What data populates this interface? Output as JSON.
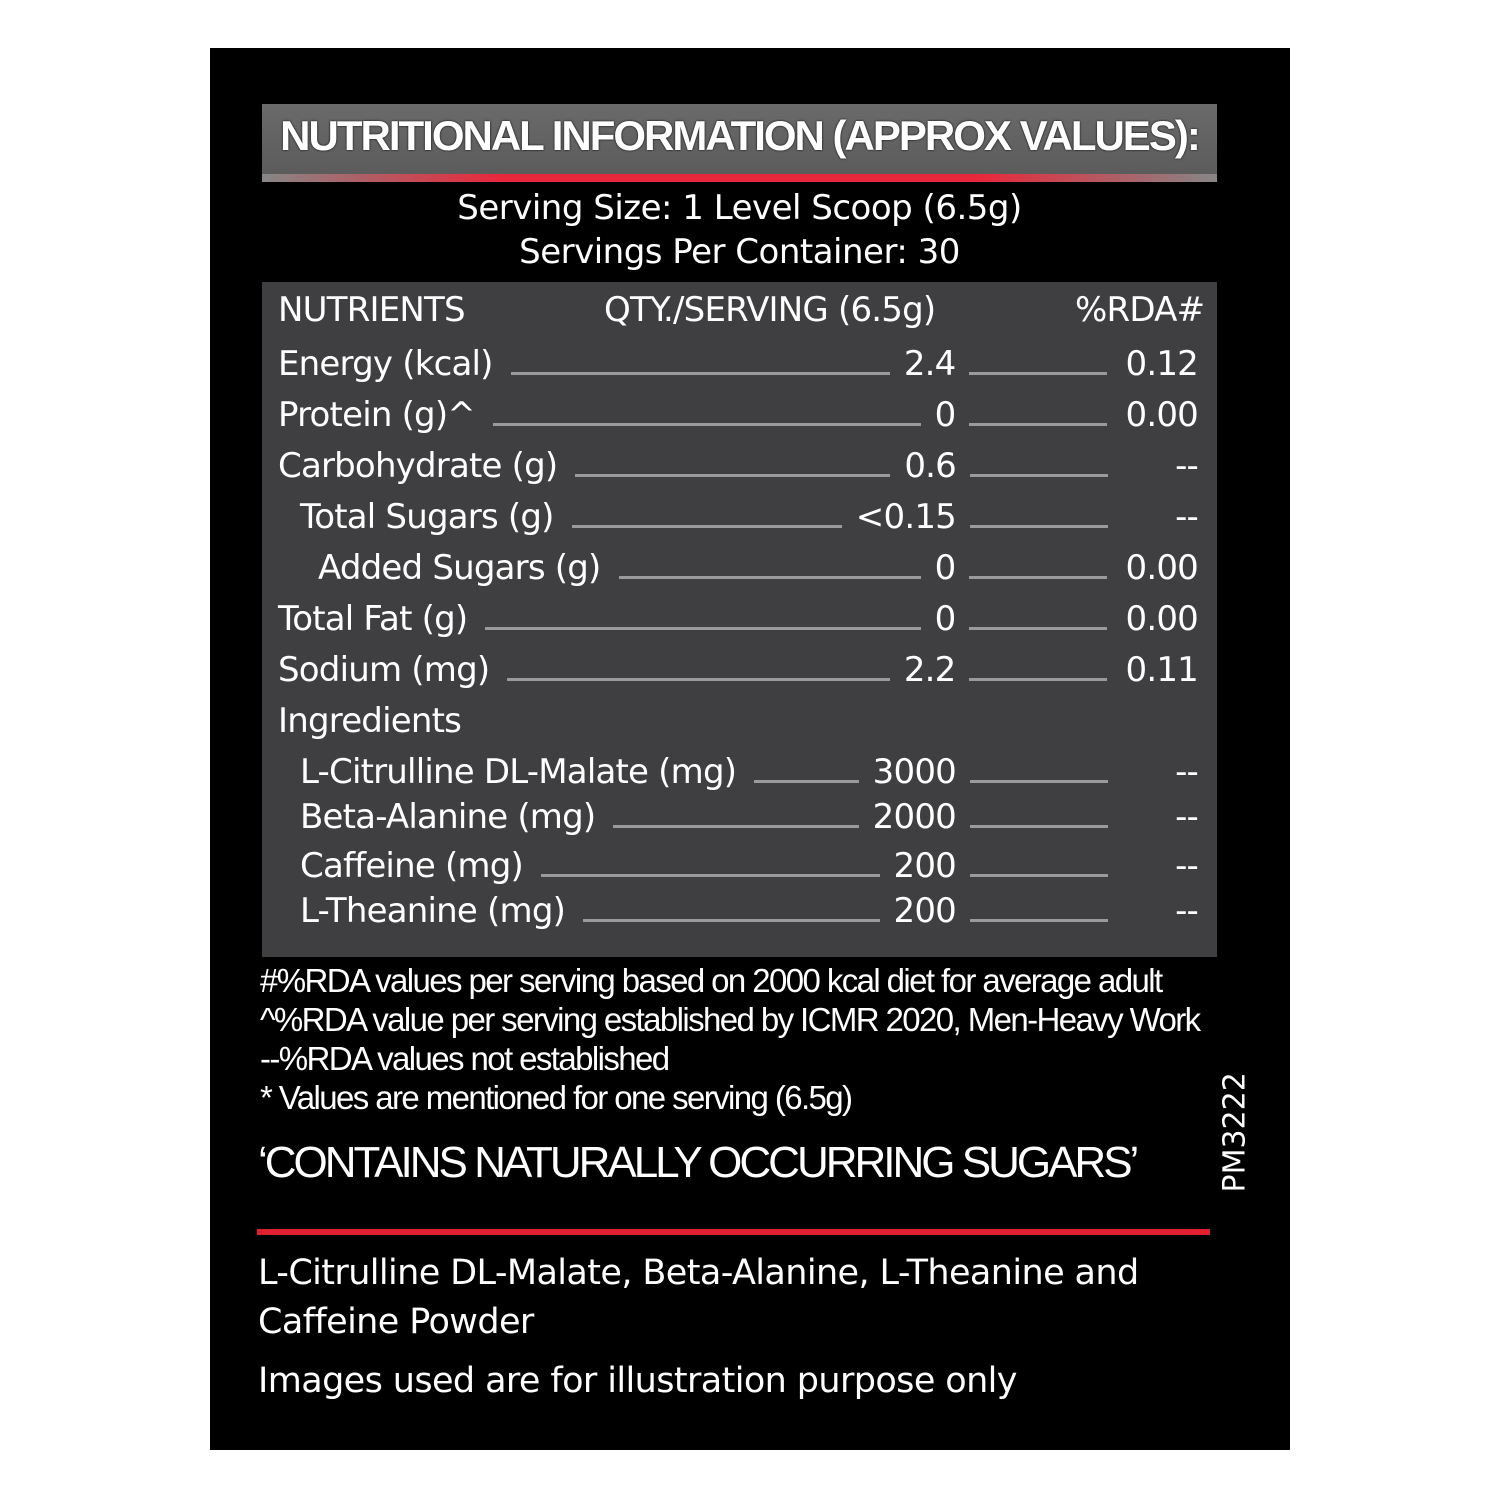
{
  "title": "NUTRITIONAL INFORMATION (APPROX VALUES):",
  "serving_size": "Serving Size: 1 Level Scoop (6.5g)",
  "servings_per_container": "Servings Per Container: 30",
  "table": {
    "headers": {
      "nutrients": "NUTRIENTS",
      "qty": "QTY./SERVING (6.5g)",
      "rda": "%RDA#"
    },
    "rows": [
      {
        "name": "Energy (kcal)",
        "qty": "2.4",
        "rda": "0.12",
        "level": 0
      },
      {
        "name": "Protein (g)^",
        "qty": "0",
        "rda": "0.00",
        "level": 0
      },
      {
        "name": "Carbohydrate (g)",
        "qty": "0.6",
        "rda": "--",
        "level": 0
      },
      {
        "name": "Total Sugars (g)",
        "qty": "<0.15",
        "rda": "--",
        "level": 1
      },
      {
        "name": "Added Sugars (g)",
        "qty": "0",
        "rda": "0.00",
        "level": 2
      },
      {
        "name": "Total Fat (g)",
        "qty": "0",
        "rda": "0.00",
        "level": 0
      },
      {
        "name": "Sodium (mg)",
        "qty": "2.2",
        "rda": "0.11",
        "level": 0
      },
      {
        "name": "Ingredients",
        "qty": "",
        "rda": "",
        "level": 0,
        "section": true
      },
      {
        "name": "L-Citrulline DL-Malate (mg)",
        "qty": "3000",
        "rda": "--",
        "level": 1
      },
      {
        "name": "Beta-Alanine (mg)",
        "qty": "2000",
        "rda": "--",
        "level": 1
      },
      {
        "name": "Caffeine (mg)",
        "qty": "200",
        "rda": "--",
        "level": 1
      },
      {
        "name": "L-Theanine (mg)",
        "qty": "200",
        "rda": "--",
        "level": 1
      }
    ]
  },
  "footnotes": [
    "#%RDA values per serving based on 2000 kcal diet for average adult",
    "^%RDA value per serving established by ICMR 2020, Men-Heavy Work",
    "--%RDA values not established",
    " * Values are mentioned for one serving (6.5g)"
  ],
  "contains_note": "‘CONTAINS NATURALLY OCCURRING SUGARS’",
  "product_code": "PM3222",
  "description_lines": [
    "L-Citrulline DL-Malate, Beta-Alanine,  L-Theanine and",
    "Caffeine Powder"
  ],
  "disclaimer": "Images used are for illustration purpose only",
  "colors": {
    "background": "#000000",
    "panel_gray": "#3f3f41",
    "accent_red": "#e0202e"
  }
}
